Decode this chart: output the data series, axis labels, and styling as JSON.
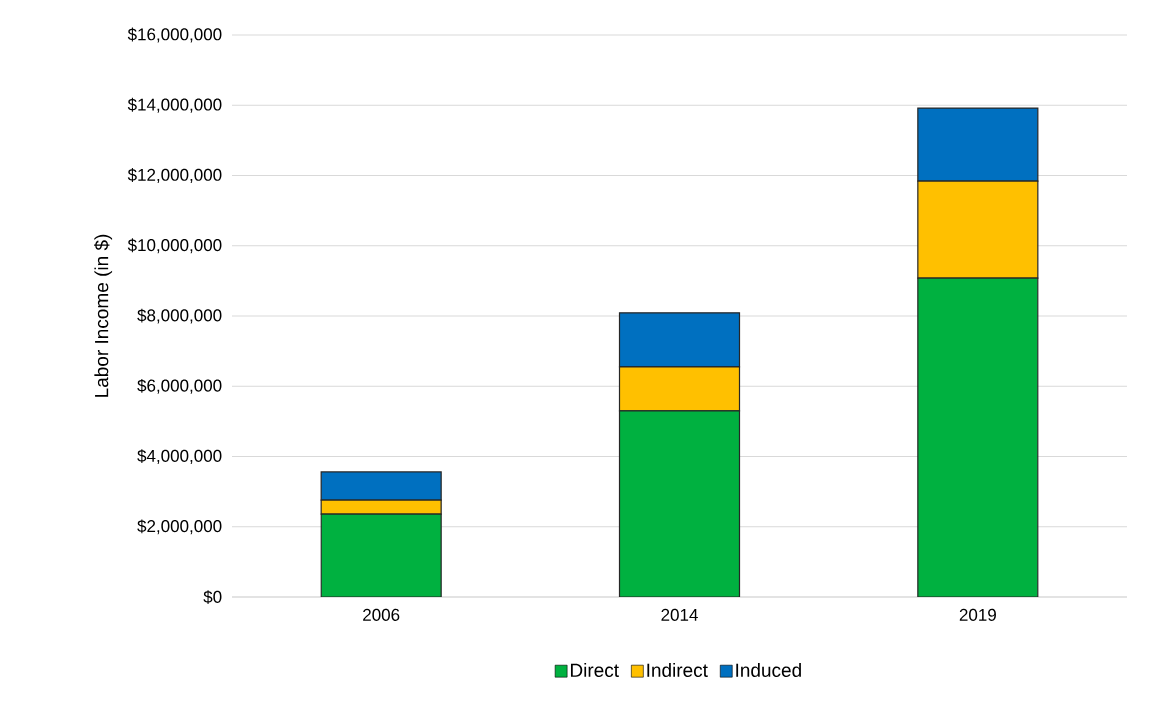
{
  "chart_data": {
    "type": "bar",
    "stacked": true,
    "ylabel": "Labor Income (in $)",
    "categories": [
      "2006",
      "2014",
      "2019"
    ],
    "series": [
      {
        "name": "Direct",
        "color": "#00b140",
        "values": [
          2360000,
          5300000,
          9080000
        ]
      },
      {
        "name": "Indirect",
        "color": "#ffc000",
        "values": [
          400000,
          1250000,
          2760000
        ]
      },
      {
        "name": "Induced",
        "color": "#0070c0",
        "values": [
          800000,
          1540000,
          2080000
        ]
      }
    ],
    "ylim": [
      0,
      16000000
    ],
    "yticks": [
      {
        "value": 0,
        "label": "$0"
      },
      {
        "value": 2000000,
        "label": "$2,000,000"
      },
      {
        "value": 4000000,
        "label": "$4,000,000"
      },
      {
        "value": 6000000,
        "label": "$6,000,000"
      },
      {
        "value": 8000000,
        "label": "$8,000,000"
      },
      {
        "value": 10000000,
        "label": "$10,000,000"
      },
      {
        "value": 12000000,
        "label": "$12,000,000"
      },
      {
        "value": 14000000,
        "label": "$14,000,000"
      },
      {
        "value": 16000000,
        "label": "$16,000,000"
      }
    ],
    "grid": "y",
    "legend": "bottom"
  }
}
